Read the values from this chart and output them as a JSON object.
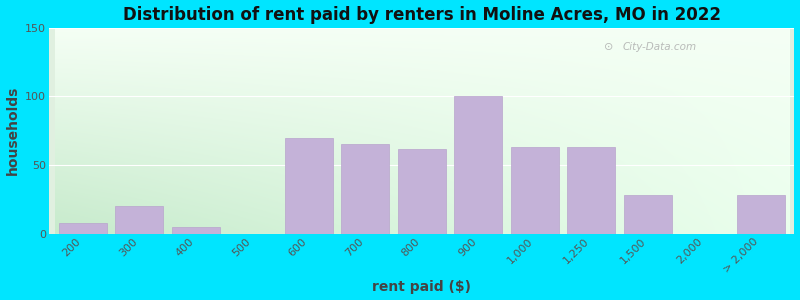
{
  "title": "Distribution of rent paid by renters in Moline Acres, MO in 2022",
  "xlabel": "rent paid ($)",
  "ylabel": "households",
  "categories": [
    "200",
    "300",
    "400",
    "500",
    "600",
    "700",
    "800",
    "900",
    "1,000",
    "1,250",
    "1,500",
    "2,000",
    "> 2,000"
  ],
  "values": [
    8,
    20,
    5,
    0,
    70,
    65,
    62,
    100,
    63,
    63,
    28,
    0,
    28
  ],
  "bar_color": "#c4b2d8",
  "bar_edge_color": "#b8a4cc",
  "ylim": [
    0,
    150
  ],
  "yticks": [
    0,
    50,
    100,
    150
  ],
  "bg_outer": "#00e5ff",
  "bg_top_left": "#d4ead8",
  "bg_top_right": "#f0f8f0",
  "bg_bottom_left": "#c8e8d0",
  "bg_bottom_right": "#f8fffa",
  "watermark": "City-Data.com",
  "title_fontsize": 12,
  "axis_label_fontsize": 10,
  "tick_fontsize": 8
}
